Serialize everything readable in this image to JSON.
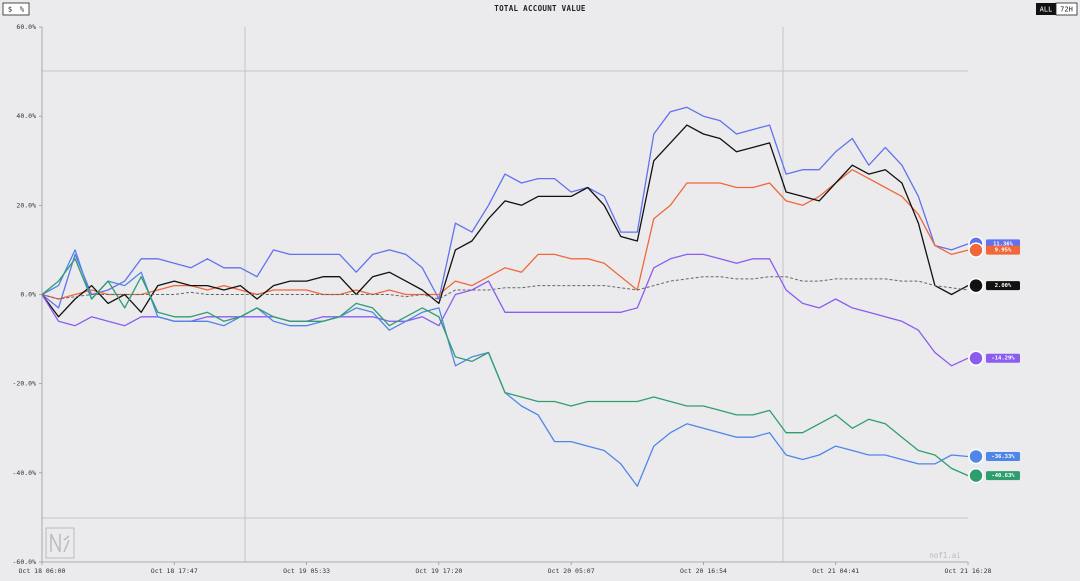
{
  "chart_data": {
    "type": "line",
    "title": "TOTAL ACCOUNT VALUE",
    "unit_buttons": [
      "$",
      "%"
    ],
    "range_buttons": [
      "ALL",
      "72H"
    ],
    "watermark": "nof1.ai",
    "categories": [
      "Oct 18 06:00",
      null,
      null,
      null,
      null,
      null,
      null,
      null,
      "Oct 18 17:47",
      null,
      null,
      null,
      null,
      null,
      null,
      null,
      "Oct 19 05:33",
      null,
      null,
      null,
      null,
      null,
      null,
      null,
      "Oct 19 17:20",
      null,
      null,
      null,
      null,
      null,
      null,
      null,
      "Oct 20 05:07",
      null,
      null,
      null,
      null,
      null,
      null,
      null,
      "Oct 20 16:54",
      null,
      null,
      null,
      null,
      null,
      null,
      null,
      "Oct 21 04:41",
      null,
      null,
      null,
      null,
      null,
      null,
      null,
      "Oct 21 16:28"
    ],
    "ylim": [
      -60,
      60
    ],
    "yticks": [
      {
        "value": 60,
        "label": "60.0%"
      },
      {
        "value": 40,
        "label": "40.0%"
      },
      {
        "value": 20,
        "label": "20.0%"
      },
      {
        "value": 0,
        "label": "0.0%"
      },
      {
        "value": -20,
        "label": "-20.0%"
      },
      {
        "value": -40,
        "label": "-40.0%"
      },
      {
        "value": -60,
        "label": "-60.0%"
      }
    ],
    "series": [
      {
        "color": "#6272ee",
        "values": [
          0,
          -3,
          9,
          0,
          1,
          3,
          8,
          8,
          7,
          6,
          8,
          6,
          6,
          4,
          10,
          9,
          9,
          9,
          9,
          5,
          9,
          10,
          9,
          6,
          -1,
          16,
          14,
          20,
          27,
          25,
          26,
          26,
          23,
          24,
          22,
          14,
          14,
          36,
          41,
          42,
          40,
          39,
          36,
          37,
          38,
          27,
          28,
          28,
          32,
          35,
          29,
          33,
          29,
          22,
          11,
          10,
          11.36
        ],
        "value_labels": {
          "56": "11.36%"
        }
      },
      {
        "color": "#f0683a",
        "values": [
          0,
          -1,
          0,
          1,
          0,
          0,
          0,
          1,
          2,
          2,
          1,
          2,
          1,
          0,
          1,
          1,
          1,
          0,
          0,
          1,
          0,
          1,
          0,
          0,
          0,
          3,
          2,
          4,
          6,
          5,
          9,
          9,
          8,
          8,
          7,
          4,
          1,
          17,
          20,
          25,
          25,
          25,
          24,
          24,
          25,
          21,
          20,
          22,
          25,
          28,
          26,
          24,
          22,
          18,
          11,
          9,
          9.95
        ],
        "value_labels": {
          "56": "9.95%"
        }
      },
      {
        "color": "#111111",
        "values": [
          0,
          -5,
          -1,
          2,
          -2,
          0,
          -4,
          2,
          3,
          2,
          2,
          1,
          2,
          -1,
          2,
          3,
          3,
          4,
          4,
          0,
          4,
          5,
          3,
          1,
          -2,
          10,
          12,
          17,
          21,
          20,
          22,
          22,
          22,
          24,
          20,
          13,
          12,
          30,
          34,
          38,
          36,
          35,
          32,
          33,
          34,
          23,
          22,
          21,
          25,
          29,
          27,
          28,
          25,
          16,
          2,
          0,
          2.0
        ],
        "value_labels": {
          "56": "2.00%"
        }
      },
      {
        "color": "#666666",
        "dashed": true,
        "values": [
          0,
          -1,
          -0.5,
          0,
          0,
          0,
          0,
          0,
          0,
          0.5,
          0,
          0,
          0,
          0,
          0,
          0,
          0,
          0,
          0,
          0,
          0,
          0,
          -0.5,
          0,
          -1,
          1,
          1,
          1,
          1.5,
          1.5,
          2,
          2,
          2,
          2,
          2,
          1.5,
          1,
          2,
          3,
          3.5,
          4,
          4,
          3.5,
          3.5,
          4,
          4,
          3,
          3,
          3.5,
          3.5,
          3.5,
          3.5,
          3,
          3,
          2,
          1.5,
          1
        ]
      },
      {
        "color": "#8b5cf0",
        "values": [
          0,
          -6,
          -7,
          -5,
          -6,
          -7,
          -5,
          -5,
          -6,
          -6,
          -5,
          -5,
          -5,
          -5,
          -5,
          -6,
          -6,
          -5,
          -5,
          -5,
          -5,
          -6,
          -6,
          -5,
          -7,
          0,
          1,
          3,
          -4,
          -4,
          -4,
          -4,
          -4,
          -4,
          -4,
          -4,
          -3,
          6,
          8,
          9,
          9,
          8,
          7,
          8,
          8,
          1,
          -2,
          -3,
          -1,
          -3,
          -4,
          -5,
          -6,
          -8,
          -13,
          -16,
          -14.29
        ],
        "value_labels": {
          "56": "-14.29%"
        }
      },
      {
        "color": "#4f86e8",
        "values": [
          0,
          2,
          10,
          -1,
          3,
          2,
          5,
          -5,
          -6,
          -6,
          -6,
          -7,
          -5,
          -3,
          -6,
          -7,
          -7,
          -6,
          -5,
          -3,
          -4,
          -8,
          -6,
          -4,
          -3,
          -16,
          -14,
          -13,
          -22,
          -25,
          -27,
          -33,
          -33,
          -34,
          -35,
          -38,
          -43,
          -34,
          -31,
          -29,
          -30,
          -31,
          -32,
          -32,
          -31,
          -36,
          -37,
          -36,
          -34,
          -35,
          -36,
          -36,
          -37,
          -38,
          -38,
          -36,
          -36.33
        ],
        "value_labels": {
          "56": "-36.33%"
        }
      },
      {
        "color": "#2f9e6e",
        "values": [
          0,
          3,
          8,
          -1,
          3,
          -3,
          4,
          -4,
          -5,
          -5,
          -4,
          -6,
          -5,
          -3,
          -5,
          -6,
          -6,
          -6,
          -5,
          -2,
          -3,
          -7,
          -5,
          -3,
          -5,
          -14,
          -15,
          -13,
          -22,
          -23,
          -24,
          -24,
          -25,
          -24,
          -24,
          -24,
          -24,
          -23,
          -24,
          -25,
          -25,
          -26,
          -27,
          -27,
          -26,
          -31,
          -31,
          -29,
          -27,
          -30,
          -28,
          -29,
          -32,
          -35,
          -36,
          -39,
          -40.63
        ],
        "value_labels": {
          "56": "-40.63%"
        }
      }
    ]
  }
}
